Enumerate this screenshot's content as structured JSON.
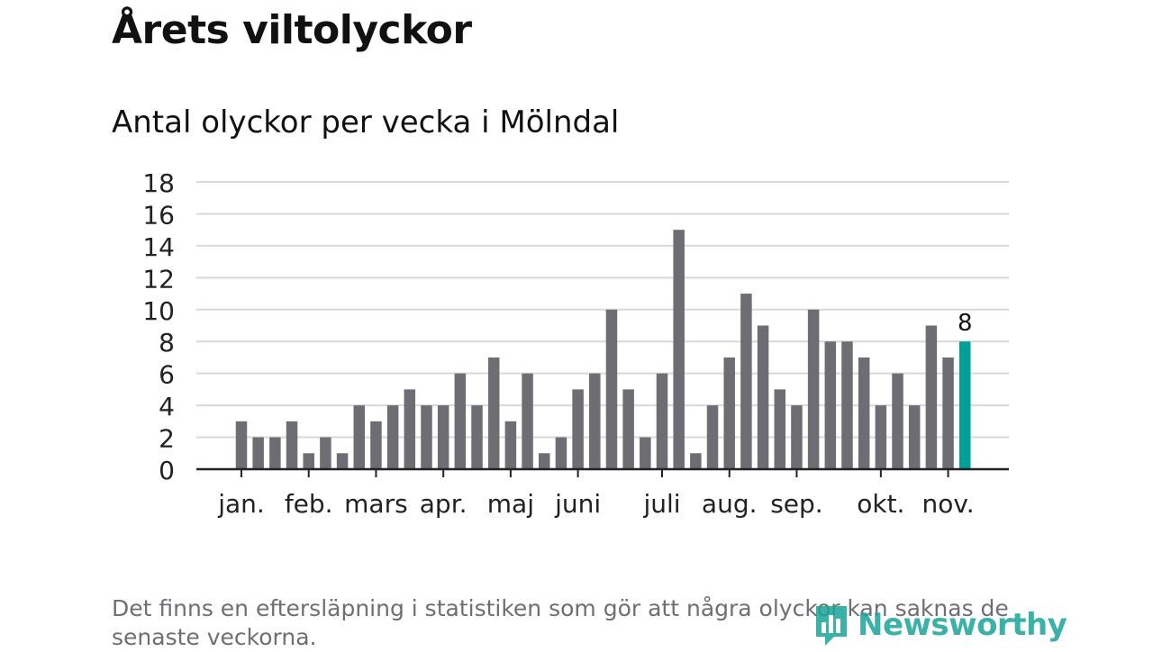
{
  "header": {
    "title": "Årets viltolyckor",
    "subtitle": "Antal olyckor per vecka i Mölndal"
  },
  "chart_data": {
    "type": "bar",
    "title": "Årets viltolyckor",
    "subtitle": "Antal olyckor per vecka i Mölndal",
    "xlabel": "",
    "ylabel": "",
    "ylim": [
      0,
      18
    ],
    "yticks": [
      "0",
      "2",
      "4",
      "6",
      "8",
      "10",
      "12",
      "14",
      "16",
      "18"
    ],
    "grid": true,
    "values": [
      3,
      2,
      2,
      3,
      1,
      2,
      1,
      4,
      3,
      4,
      5,
      4,
      4,
      6,
      4,
      7,
      3,
      6,
      1,
      2,
      5,
      6,
      10,
      5,
      2,
      6,
      15,
      1,
      4,
      7,
      11,
      9,
      5,
      4,
      10,
      8,
      8,
      7,
      4,
      6,
      4,
      9,
      7,
      8
    ],
    "month_labels": [
      {
        "label": "jan.",
        "week": 1
      },
      {
        "label": "feb.",
        "week": 5
      },
      {
        "label": "mars",
        "week": 9
      },
      {
        "label": "apr.",
        "week": 13
      },
      {
        "label": "maj",
        "week": 17
      },
      {
        "label": "juni",
        "week": 21
      },
      {
        "label": "juli",
        "week": 26
      },
      {
        "label": "aug.",
        "week": 30
      },
      {
        "label": "sep.",
        "week": 34
      },
      {
        "label": "okt.",
        "week": 39
      },
      {
        "label": "nov.",
        "week": 43
      }
    ],
    "highlight_label": "8",
    "colors": {
      "bar": "#6e6d73",
      "highlight": "#00a098",
      "grid": "#d9d9d9",
      "axis": "#222222"
    }
  },
  "footer": {
    "note": "Det finns en eftersläpning i statistiken som gör att några olyckor kan saknas de senaste veckorna.",
    "logo_text": "Newsworthy",
    "logo_icon": "newsworthy-logo-icon"
  }
}
